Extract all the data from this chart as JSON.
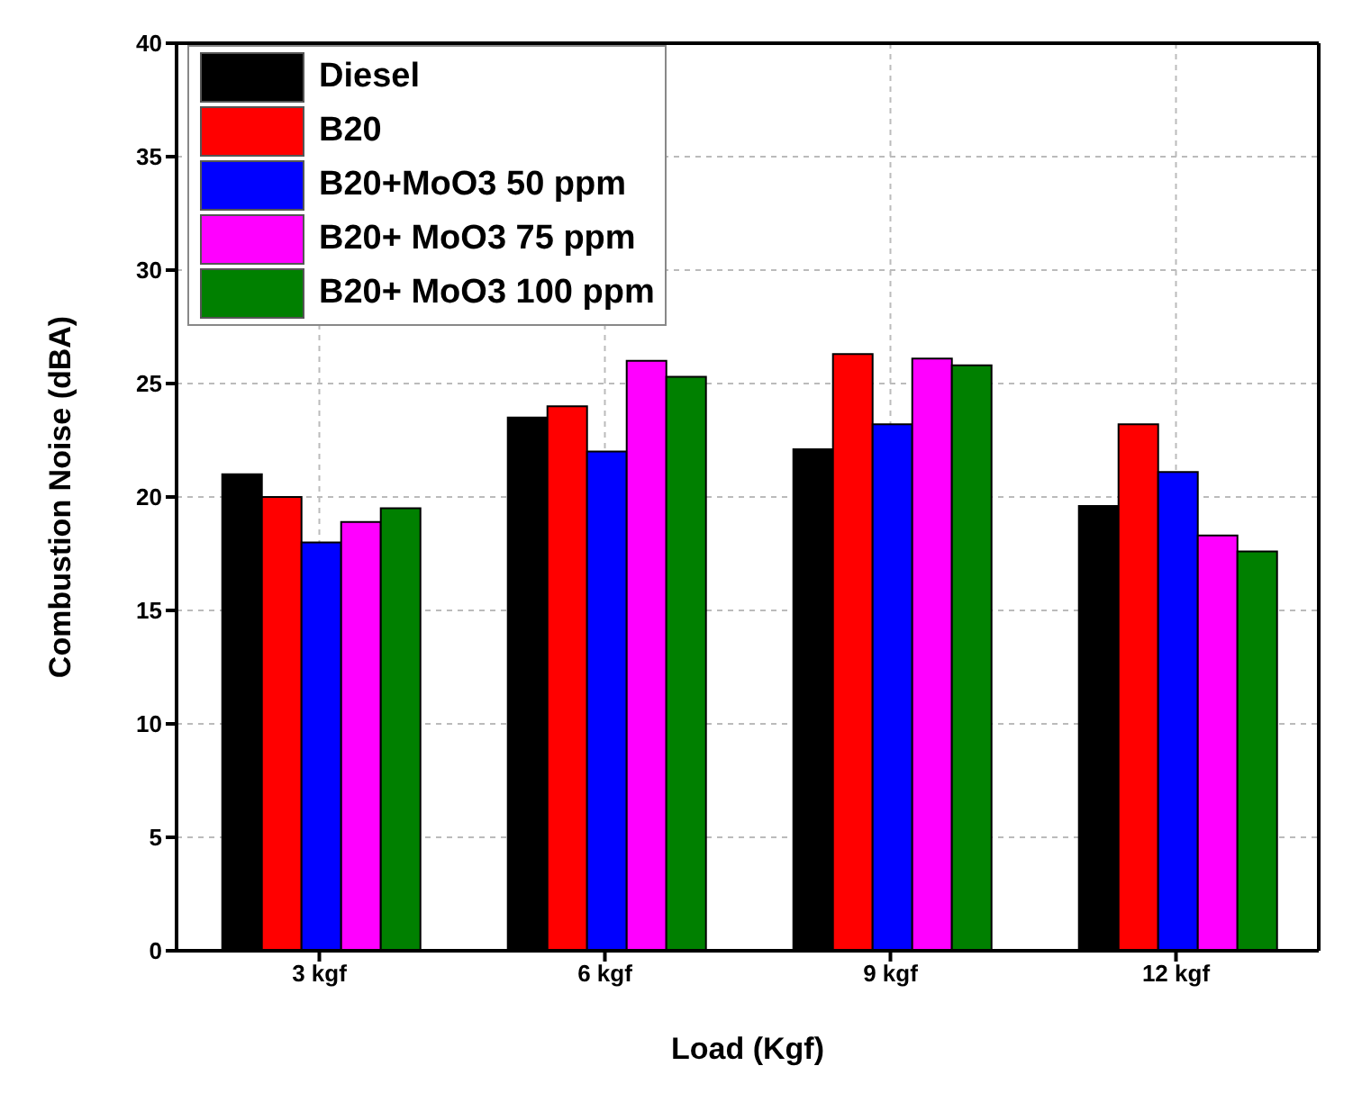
{
  "chart_data": {
    "type": "bar",
    "xlabel": "Load (Kgf)",
    "ylabel": "Combustion Noise (dBA)",
    "categories": [
      "3 kgf",
      "6 kgf",
      "9 kgf",
      "12 kgf"
    ],
    "series": [
      {
        "name": "Diesel",
        "color": "#000000",
        "values": [
          21,
          23.5,
          22.1,
          19.6
        ]
      },
      {
        "name": "B20",
        "color": "#ff0000",
        "values": [
          20,
          24,
          26.3,
          23.2
        ]
      },
      {
        "name": "B20+MoO3 50 ppm",
        "color": "#0000ff",
        "values": [
          18,
          22,
          23.2,
          21.1
        ]
      },
      {
        "name": "B20+ MoO3 75 ppm",
        "color": "#ff00ff",
        "values": [
          18.9,
          26,
          26.1,
          18.3
        ]
      },
      {
        "name": "B20+ MoO3 100 ppm",
        "color": "#008000",
        "values": [
          19.5,
          25.3,
          25.8,
          17.6
        ]
      }
    ],
    "ylim": [
      0,
      40
    ],
    "yticks": [
      0,
      5,
      10,
      15,
      20,
      25,
      30,
      35,
      40
    ],
    "grid": true,
    "legend": "top left"
  }
}
